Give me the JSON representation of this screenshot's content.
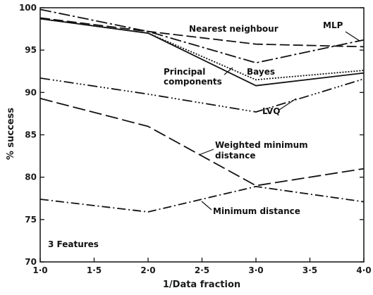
{
  "chart_data": {
    "type": "line",
    "x": [
      1.0,
      2.0,
      3.0,
      4.0
    ],
    "xlim": [
      1.0,
      4.0
    ],
    "ylim": [
      70,
      100
    ],
    "xticks": [
      "1·0",
      "1·5",
      "2·0",
      "2·5",
      "3·0",
      "3·5",
      "4·0"
    ],
    "yticks": [
      "70",
      "75",
      "80",
      "85",
      "90",
      "95",
      "100"
    ],
    "xlabel": "1/Data fraction",
    "ylabel": "% success",
    "annotation": "3 Features",
    "series": [
      {
        "name": "Nearest neighbour",
        "values": [
          98.8,
          97.2,
          95.7,
          95.4
        ],
        "dash": "14,5"
      },
      {
        "name": "MLP",
        "values": [
          99.8,
          97.2,
          93.5,
          96.2
        ],
        "dash": "16,4,3,4"
      },
      {
        "name": "Bayes",
        "values": [
          98.7,
          97.0,
          91.5,
          92.6
        ],
        "dash": "2,2"
      },
      {
        "name": "Principal components",
        "values": [
          98.7,
          97.0,
          90.8,
          92.3
        ],
        "dash": ""
      },
      {
        "name": "LVQ",
        "values": [
          91.7,
          89.8,
          87.7,
          91.6
        ],
        "dash": "14,4,2,3,2,3,2,4"
      },
      {
        "name": "Weighted minimum distance",
        "values": [
          89.3,
          86.0,
          79.0,
          81.0
        ],
        "dash": "18,6"
      },
      {
        "name": "Minimum distance",
        "values": [
          77.4,
          75.9,
          78.9,
          77.1
        ],
        "dash": "12,4,2,4"
      }
    ]
  }
}
